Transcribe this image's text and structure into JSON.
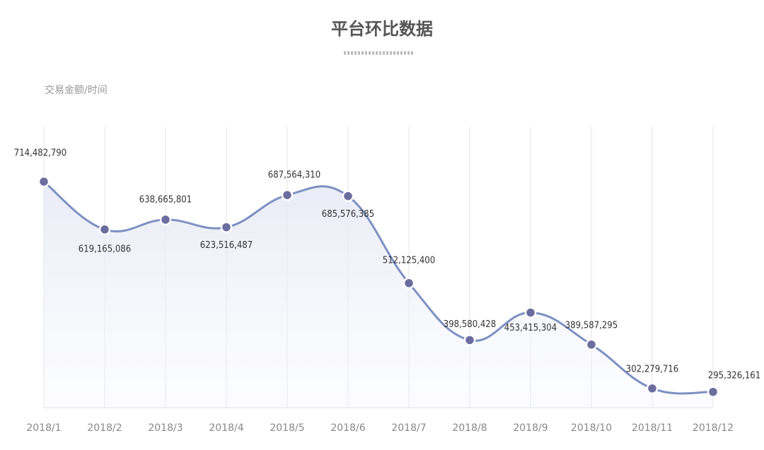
{
  "chart_data": {
    "type": "line",
    "title": "平台环比数据",
    "y_label": "交易金额/时间",
    "categories": [
      "2018/1",
      "2018/2",
      "2018/3",
      "2018/4",
      "2018/5",
      "2018/6",
      "2018/7",
      "2018/8",
      "2018/9",
      "2018/10",
      "2018/11",
      "2018/12"
    ],
    "series": [
      {
        "name": "交易金额",
        "color": "#7d90c2",
        "marker_color": "#6b6d9e",
        "values": [
          714482790,
          619165086,
          638665801,
          623516487,
          687564310,
          685576385,
          512125400,
          398580428,
          453415304,
          389587295,
          302279716,
          295326161
        ],
        "value_labels": [
          "714,482,790",
          "619,165,086",
          "638,665,801",
          "623,516,487",
          "687,564,310",
          "685,576,385",
          "512,125,400",
          "398,580,428",
          "453,415,304",
          "389,587,295",
          "302,279,716",
          "295,326,161"
        ]
      }
    ],
    "ylim": [
      264000000,
      823000000
    ],
    "grid": true
  }
}
